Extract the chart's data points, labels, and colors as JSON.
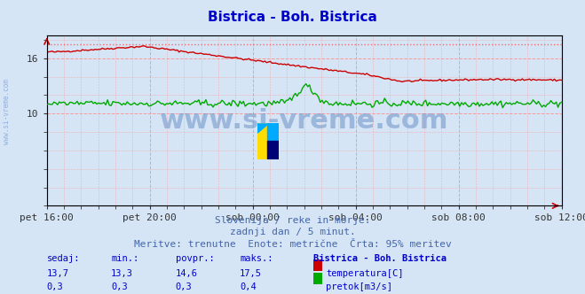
{
  "title": "Bistrica - Boh. Bistrica",
  "title_color": "#0000cc",
  "bg_color": "#d5e5f5",
  "plot_bg_color": "#d5e5f5",
  "grid_color": "#ff9999",
  "xlabel_ticks": [
    "pet 16:00",
    "pet 20:00",
    "sob 00:00",
    "sob 04:00",
    "sob 08:00",
    "sob 12:00"
  ],
  "xlabel_tick_positions": [
    0,
    48,
    96,
    144,
    192,
    240
  ],
  "ylim_temp": [
    0,
    18.5
  ],
  "total_points": 289,
  "temp_color": "#cc0000",
  "flow_color": "#00aa00",
  "max_line_color": "#ff6666",
  "max_line_value": 17.5,
  "watermark_text": "www.si-vreme.com",
  "watermark_color": "#7799cc",
  "subtitle1": "Slovenija / reke in morje.",
  "subtitle2": "zadnji dan / 5 minut.",
  "subtitle3": "Meritve: trenutne  Enote: metrične  Črta: 95% meritev",
  "subtitle_color": "#4466aa",
  "table_header": [
    "sedaj:",
    "min.:",
    "povpr.:",
    "maks.:",
    "Bistrica - Boh. Bistrica"
  ],
  "table_row1": [
    "13,7",
    "13,3",
    "14,6",
    "17,5",
    "temperatura[C]"
  ],
  "table_row2": [
    "0,3",
    "0,3",
    "0,3",
    "0,4",
    "pretok[m3/s]"
  ],
  "table_color": "#0000cc",
  "side_label": "www.si-vreme.com",
  "figsize": [
    6.59,
    3.32
  ],
  "dpi": 100
}
